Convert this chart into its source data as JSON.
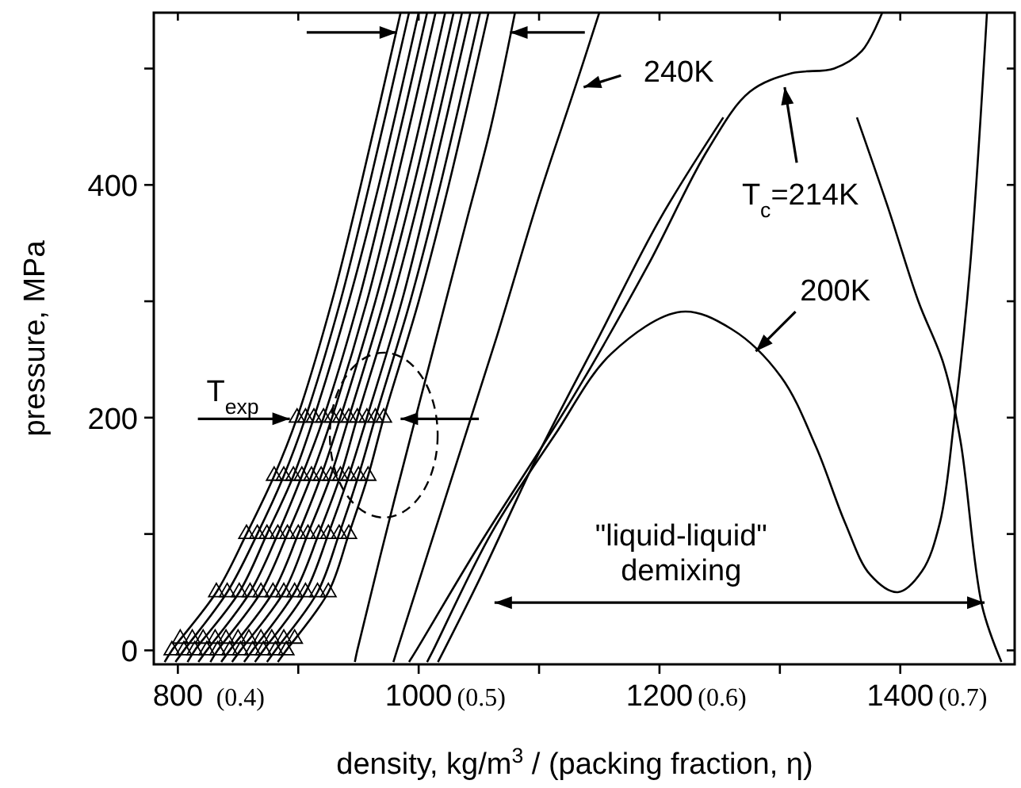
{
  "chart_data": {
    "type": "line",
    "xlabel": "density, kg/m$^{3}$  / (packing fraction, η)",
    "ylabel": "pressure, MPa",
    "xlim": [
      780,
      1495
    ],
    "ylim": [
      -12,
      548
    ],
    "xticks": [
      800,
      {
        "value": 900,
        "label": null
      },
      1000,
      {
        "value": 1100,
        "label": null
      },
      1200,
      {
        "value": 1300,
        "label": null
      },
      1400
    ],
    "x2lim": [
      0.364,
      0.7215
    ],
    "x2ticks": [
      {
        "value": 0.4,
        "label": "(0.4)"
      },
      {
        "value": 0.5,
        "label": "(0.5)"
      },
      {
        "value": 0.6,
        "label": "(0.6)"
      },
      {
        "value": 0.7,
        "label": "(0.7)"
      }
    ],
    "yticks": [
      0,
      {
        "value": 100,
        "label": null
      },
      200,
      {
        "value": 300,
        "label": null
      },
      400,
      {
        "value": 500,
        "label": null
      }
    ],
    "annotations": [
      "240K",
      "T$_{c}$=214K",
      "200K",
      {
        "text": "T$_{exp}$",
        "x": 893,
        "y": 199
      },
      "\"liquid-liquid\"\ndemixing"
    ],
    "series": [
      {
        "color": "#000000",
        "x": [
          789,
          795,
          832,
          857,
          880,
          899,
          928,
          952,
          985
        ],
        "values": [
          -10,
          0,
          50,
          100,
          150,
          200,
          300,
          400,
          548
        ]
      },
      {
        "color": "#000000",
        "x": [
          798,
          805,
          841,
          866,
          888,
          906,
          935,
          959,
          992
        ],
        "values": [
          -10,
          0,
          50,
          100,
          150,
          200,
          300,
          400,
          548
        ]
      },
      {
        "color": "#000000",
        "x": [
          808,
          814,
          851,
          874,
          896,
          913,
          942,
          967,
          1000
        ],
        "values": [
          -10,
          0,
          50,
          100,
          150,
          200,
          300,
          400,
          548
        ]
      },
      {
        "color": "#000000",
        "x": [
          817,
          824,
          860,
          883,
          903,
          921,
          950,
          974,
          1007
        ],
        "values": [
          -10,
          0,
          50,
          100,
          150,
          200,
          300,
          400,
          548
        ]
      },
      {
        "color": "#000000",
        "x": [
          827,
          833,
          869,
          891,
          911,
          928,
          957,
          981,
          1014
        ],
        "values": [
          -10,
          0,
          50,
          100,
          150,
          200,
          300,
          400,
          548
        ]
      },
      {
        "color": "#000000",
        "x": [
          836,
          843,
          879,
          900,
          919,
          935,
          964,
          989,
          1022
        ],
        "values": [
          -10,
          0,
          50,
          100,
          150,
          200,
          300,
          400,
          548
        ]
      },
      {
        "color": "#000000",
        "x": [
          845,
          852,
          888,
          908,
          927,
          942,
          971,
          996,
          1029
        ],
        "values": [
          -10,
          0,
          50,
          100,
          150,
          200,
          300,
          400,
          548
        ]
      },
      {
        "color": "#000000",
        "x": [
          855,
          862,
          897,
          917,
          935,
          949,
          978,
          1003,
          1036
        ],
        "values": [
          -10,
          0,
          50,
          100,
          150,
          200,
          300,
          400,
          548
        ]
      },
      {
        "color": "#000000",
        "x": [
          864,
          871,
          906,
          925,
          942,
          957,
          986,
          1010,
          1043
        ],
        "values": [
          -10,
          0,
          50,
          100,
          150,
          200,
          300,
          400,
          548
        ]
      },
      {
        "color": "#000000",
        "x": [
          874,
          881,
          916,
          934,
          950,
          964,
          993,
          1018,
          1051
        ],
        "values": [
          -10,
          0,
          50,
          100,
          150,
          200,
          300,
          400,
          548
        ]
      },
      {
        "color": "#000000",
        "x": [
          883,
          890,
          925,
          942,
          958,
          971,
          1000,
          1025,
          1058
        ],
        "values": [
          -10,
          0,
          50,
          100,
          150,
          200,
          300,
          400,
          548
        ]
      },
      {
        "color": "#000000",
        "x": [
          947,
          949,
          980,
          1010,
          1040,
          1060,
          1080
        ],
        "values": [
          -10,
          0,
          130,
          250,
          370,
          450,
          548
        ]
      },
      {
        "color": "#000000",
        "x": [
          979,
          982,
          1025,
          1065,
          1100,
          1130,
          1150
        ],
        "values": [
          -10,
          0,
          140,
          270,
          390,
          484,
          548
        ]
      },
      {
        "color": "#000000",
        "x": [
          992,
          998,
          1050,
          1129,
          1190,
          1240,
          1275,
          1310,
          1345,
          1368,
          1385
        ],
        "values": [
          -10,
          0,
          90,
          219,
          330,
          430,
          480,
          496,
          500,
          515,
          548
        ]
      },
      {
        "color": "#000000",
        "x": [
          1007,
          1012,
          1060,
          1113,
          1160,
          1218,
          1260,
          1301,
          1330,
          1354,
          1375,
          1398,
          1418,
          1433,
          1445,
          1458,
          1472
        ],
        "values": [
          -10,
          0,
          100,
          185,
          255,
          291,
          276,
          235,
          175,
          110,
          65,
          50,
          68,
          110,
          200,
          330,
          548
        ]
      },
      {
        "color": "#000000",
        "x": [
          1016,
          1021,
          1050,
          1100,
          1150,
          1200,
          1253
        ],
        "values": [
          -10,
          0,
          60,
          170,
          270,
          370,
          458
        ]
      },
      {
        "color": "#000000",
        "x": [
          1364,
          1390,
          1415,
          1436,
          1450,
          1468,
          1484
        ],
        "values": [
          458,
          380,
          300,
          246,
          180,
          38,
          -10
        ]
      },
      {
        "type": "scatter",
        "marker": "triangle",
        "color": "#000000",
        "x": [
          795,
          805,
          814,
          824,
          833,
          843,
          852,
          862,
          871,
          881,
          890,
          802,
          812,
          821,
          831,
          840,
          850,
          859,
          869,
          878,
          888,
          897,
          832,
          841,
          851,
          860,
          869,
          879,
          888,
          897,
          906,
          916,
          925,
          857,
          866,
          874,
          883,
          891,
          900,
          908,
          917,
          925,
          934,
          942,
          880,
          888,
          896,
          903,
          911,
          919,
          927,
          935,
          942,
          950,
          958,
          899,
          906,
          913,
          921,
          928,
          935,
          942,
          949,
          957,
          964,
          971
        ],
        "values": [
          0,
          0,
          0,
          0,
          0,
          0,
          0,
          0,
          0,
          0,
          0,
          10,
          10,
          10,
          10,
          10,
          10,
          10,
          10,
          10,
          10,
          10,
          50,
          50,
          50,
          50,
          50,
          50,
          50,
          50,
          50,
          50,
          50,
          100,
          100,
          100,
          100,
          100,
          100,
          100,
          100,
          100,
          100,
          100,
          150,
          150,
          150,
          150,
          150,
          150,
          150,
          150,
          150,
          150,
          150,
          200,
          200,
          200,
          200,
          200,
          200,
          200,
          200,
          200,
          200,
          200
        ]
      }
    ]
  }
}
